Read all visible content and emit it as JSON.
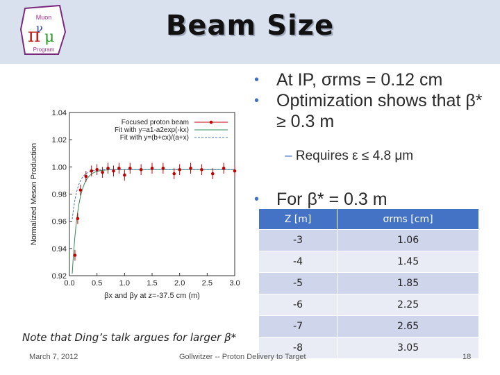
{
  "header": {
    "title": "Beam Size",
    "logo_text": "Muon Accelerator Program"
  },
  "bullets": [
    {
      "text": "At IP, σrms = 0.12 cm"
    },
    {
      "text": "Optimization shows that β* ≥ 0.3 m"
    }
  ],
  "sub_bullet": "Requires ε ≤ 4.8 μm",
  "bullet3": "For β* = 0.3 m",
  "table": {
    "headers": [
      "Z [m]",
      "σrms [cm]"
    ],
    "rows": [
      [
        "-3",
        "1.06"
      ],
      [
        "-4",
        "1.45"
      ],
      [
        "-5",
        "1.85"
      ],
      [
        "-6",
        "2.25"
      ],
      [
        "-7",
        "2.65"
      ],
      [
        "-8",
        "3.05"
      ]
    ]
  },
  "note": "Note that Ding’s talk argues for larger β*",
  "footer": {
    "date": "March 7, 2012",
    "center": "Gollwitzer -- Proton Delivery to Target",
    "page": "18"
  },
  "chart_data": {
    "type": "scatter",
    "ylabel": "Normalized Meson Production",
    "xlabel": "βx and βy at z=-37.5 cm (m)",
    "xlim": [
      0,
      3.0
    ],
    "ylim": [
      0.92,
      1.04
    ],
    "xticks": [
      "0.0",
      "0.5",
      "1.0",
      "1.5",
      "2.0",
      "2.5",
      "3.0"
    ],
    "yticks": [
      "0.92",
      "0.94",
      "0.96",
      "0.98",
      "1.00",
      "1.02",
      "1.04"
    ],
    "legend": [
      "Focused proton beam",
      "Fit with y=a1-a2exp(-kx)",
      "Fit with y=(b+cx)/(a+x)"
    ],
    "legend_position": "top-right",
    "series": [
      {
        "name": "Focused proton beam",
        "color": "#c00000",
        "x": [
          0.1,
          0.15,
          0.2,
          0.3,
          0.4,
          0.5,
          0.6,
          0.7,
          0.8,
          0.9,
          1.0,
          1.1,
          1.3,
          1.5,
          1.7,
          1.9,
          2.0,
          2.2,
          2.4,
          2.6,
          2.8,
          3.0
        ],
        "y": [
          0.935,
          0.962,
          0.983,
          0.993,
          0.997,
          0.998,
          0.996,
          0.999,
          0.997,
          0.999,
          0.994,
          0.999,
          0.998,
          0.999,
          0.999,
          0.995,
          0.998,
          0.999,
          0.998,
          0.995,
          0.999,
          0.997
        ],
        "err": 0.004
      },
      {
        "name": "Fit with y=a1-a2exp(-kx)",
        "color": "#2e8b57"
      },
      {
        "name": "Fit with y=(b+cx)/(a+x)",
        "color": "#4472c4"
      }
    ]
  },
  "colors": {
    "header_bg": "#d9e1ee",
    "table_header": "#4472c4",
    "accent": "#4472c4"
  }
}
